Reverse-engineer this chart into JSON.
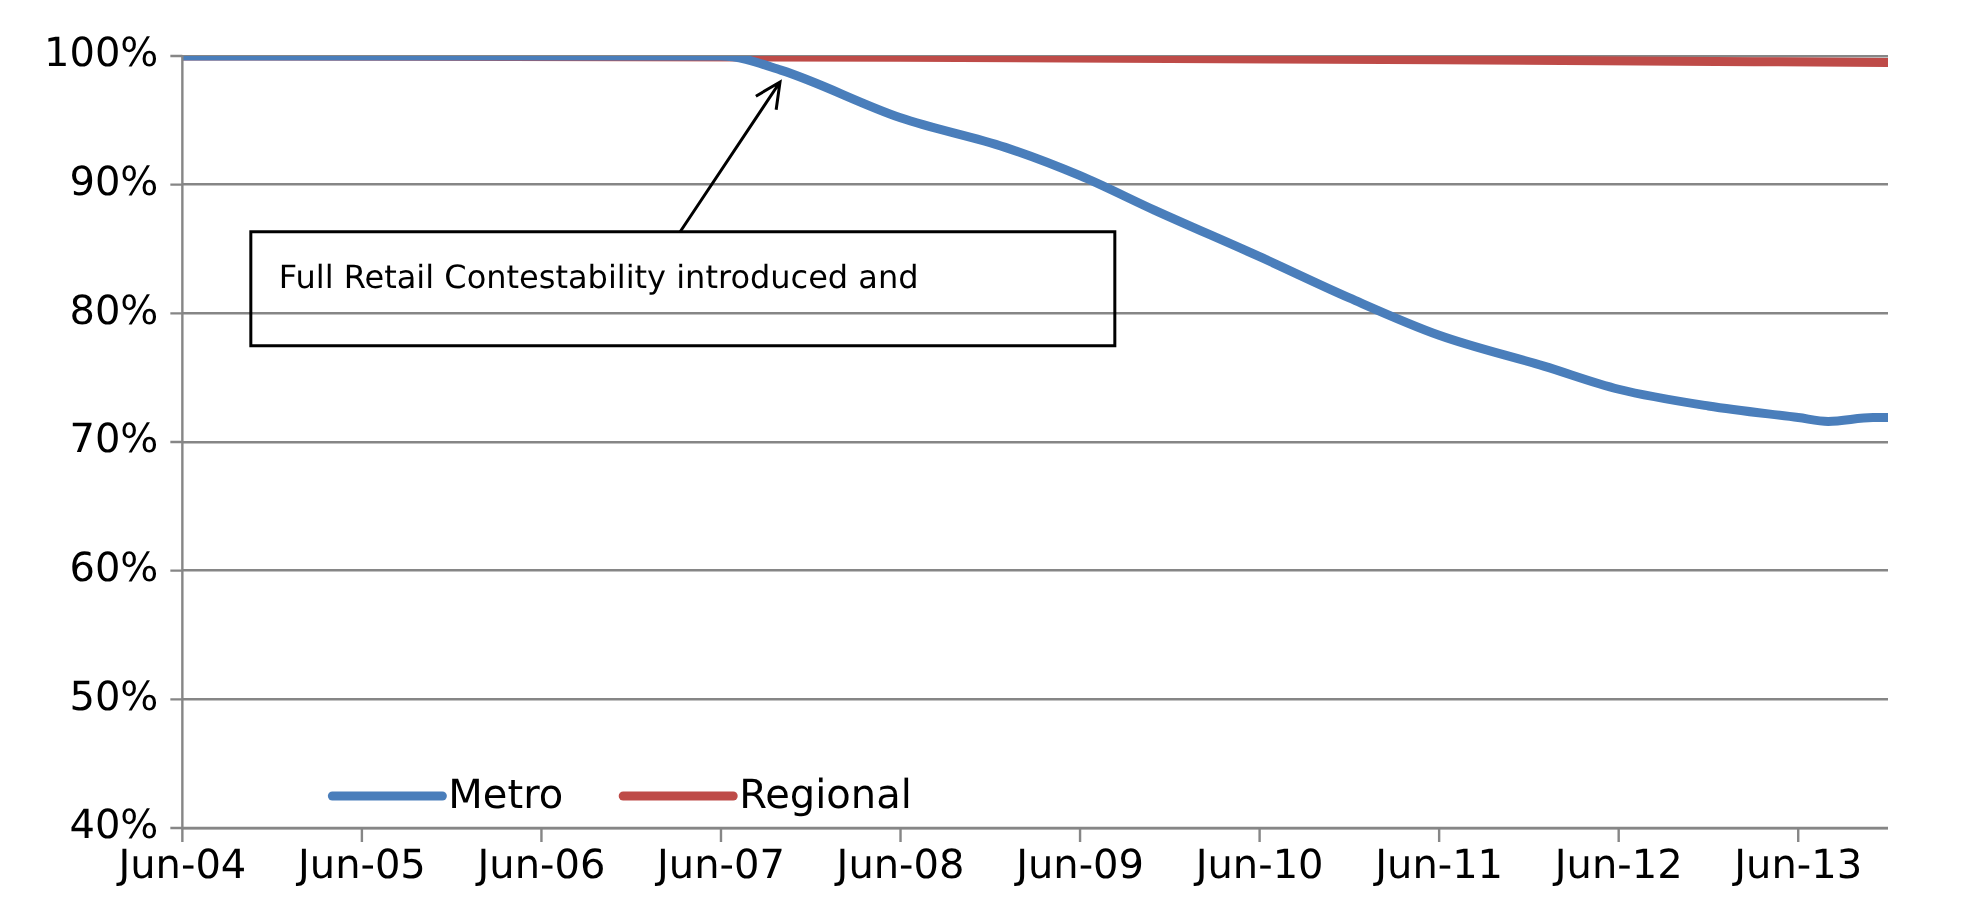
{
  "chart_data": {
    "type": "line",
    "series": [
      {
        "name": "Metro",
        "color": "#4a7ebb",
        "x": [
          "2004-06",
          "2005-06",
          "2006-06",
          "2007-06",
          "2007-10",
          "2008-06",
          "2009-01",
          "2009-06",
          "2009-11",
          "2010-06",
          "2010-12",
          "2011-06",
          "2012-01",
          "2012-06",
          "2012-12",
          "2013-06",
          "2013-08",
          "2013-11",
          "2013-12"
        ],
        "values": [
          100,
          100,
          100,
          100,
          98.9,
          95.2,
          92.9,
          90.7,
          88,
          84.4,
          81.2,
          78.3,
          75.9,
          74.1,
          72.8,
          71.9,
          71.6,
          71.9,
          71.9
        ]
      },
      {
        "name": "Regional",
        "color": "#be4b48",
        "x": [
          "2004-06",
          "2008-06",
          "2011-06",
          "2013-12"
        ],
        "values": [
          100,
          99.9,
          99.7,
          99.5
        ]
      }
    ],
    "xlim": [
      "2004-06",
      "2013-12"
    ],
    "xticks": [
      {
        "value": "2004-06",
        "label": "Jun-04"
      },
      {
        "value": "2005-06",
        "label": "Jun-05"
      },
      {
        "value": "2006-06",
        "label": "Jun-06"
      },
      {
        "value": "2007-06",
        "label": "Jun-07"
      },
      {
        "value": "2008-06",
        "label": "Jun-08"
      },
      {
        "value": "2009-06",
        "label": "Jun-09"
      },
      {
        "value": "2010-06",
        "label": "Jun-10"
      },
      {
        "value": "2011-06",
        "label": "Jun-11"
      },
      {
        "value": "2012-06",
        "label": "Jun-12"
      },
      {
        "value": "2013-06",
        "label": "Jun-13"
      }
    ],
    "ylim": [
      40,
      100
    ],
    "yticks": [
      {
        "value": 40,
        "label": "40%"
      },
      {
        "value": 50,
        "label": "50%"
      },
      {
        "value": 60,
        "label": "60%"
      },
      {
        "value": 70,
        "label": "70%"
      },
      {
        "value": 80,
        "label": "80%"
      },
      {
        "value": 90,
        "label": "90%"
      },
      {
        "value": 100,
        "label": "100%"
      }
    ],
    "grid": "y",
    "legend": "bottom left",
    "marker": "none",
    "line_style": "solid",
    "annotations": [
      {
        "text": "Full Retail Contestability introduced and",
        "x": "2007-10",
        "y": 98
      }
    ]
  }
}
